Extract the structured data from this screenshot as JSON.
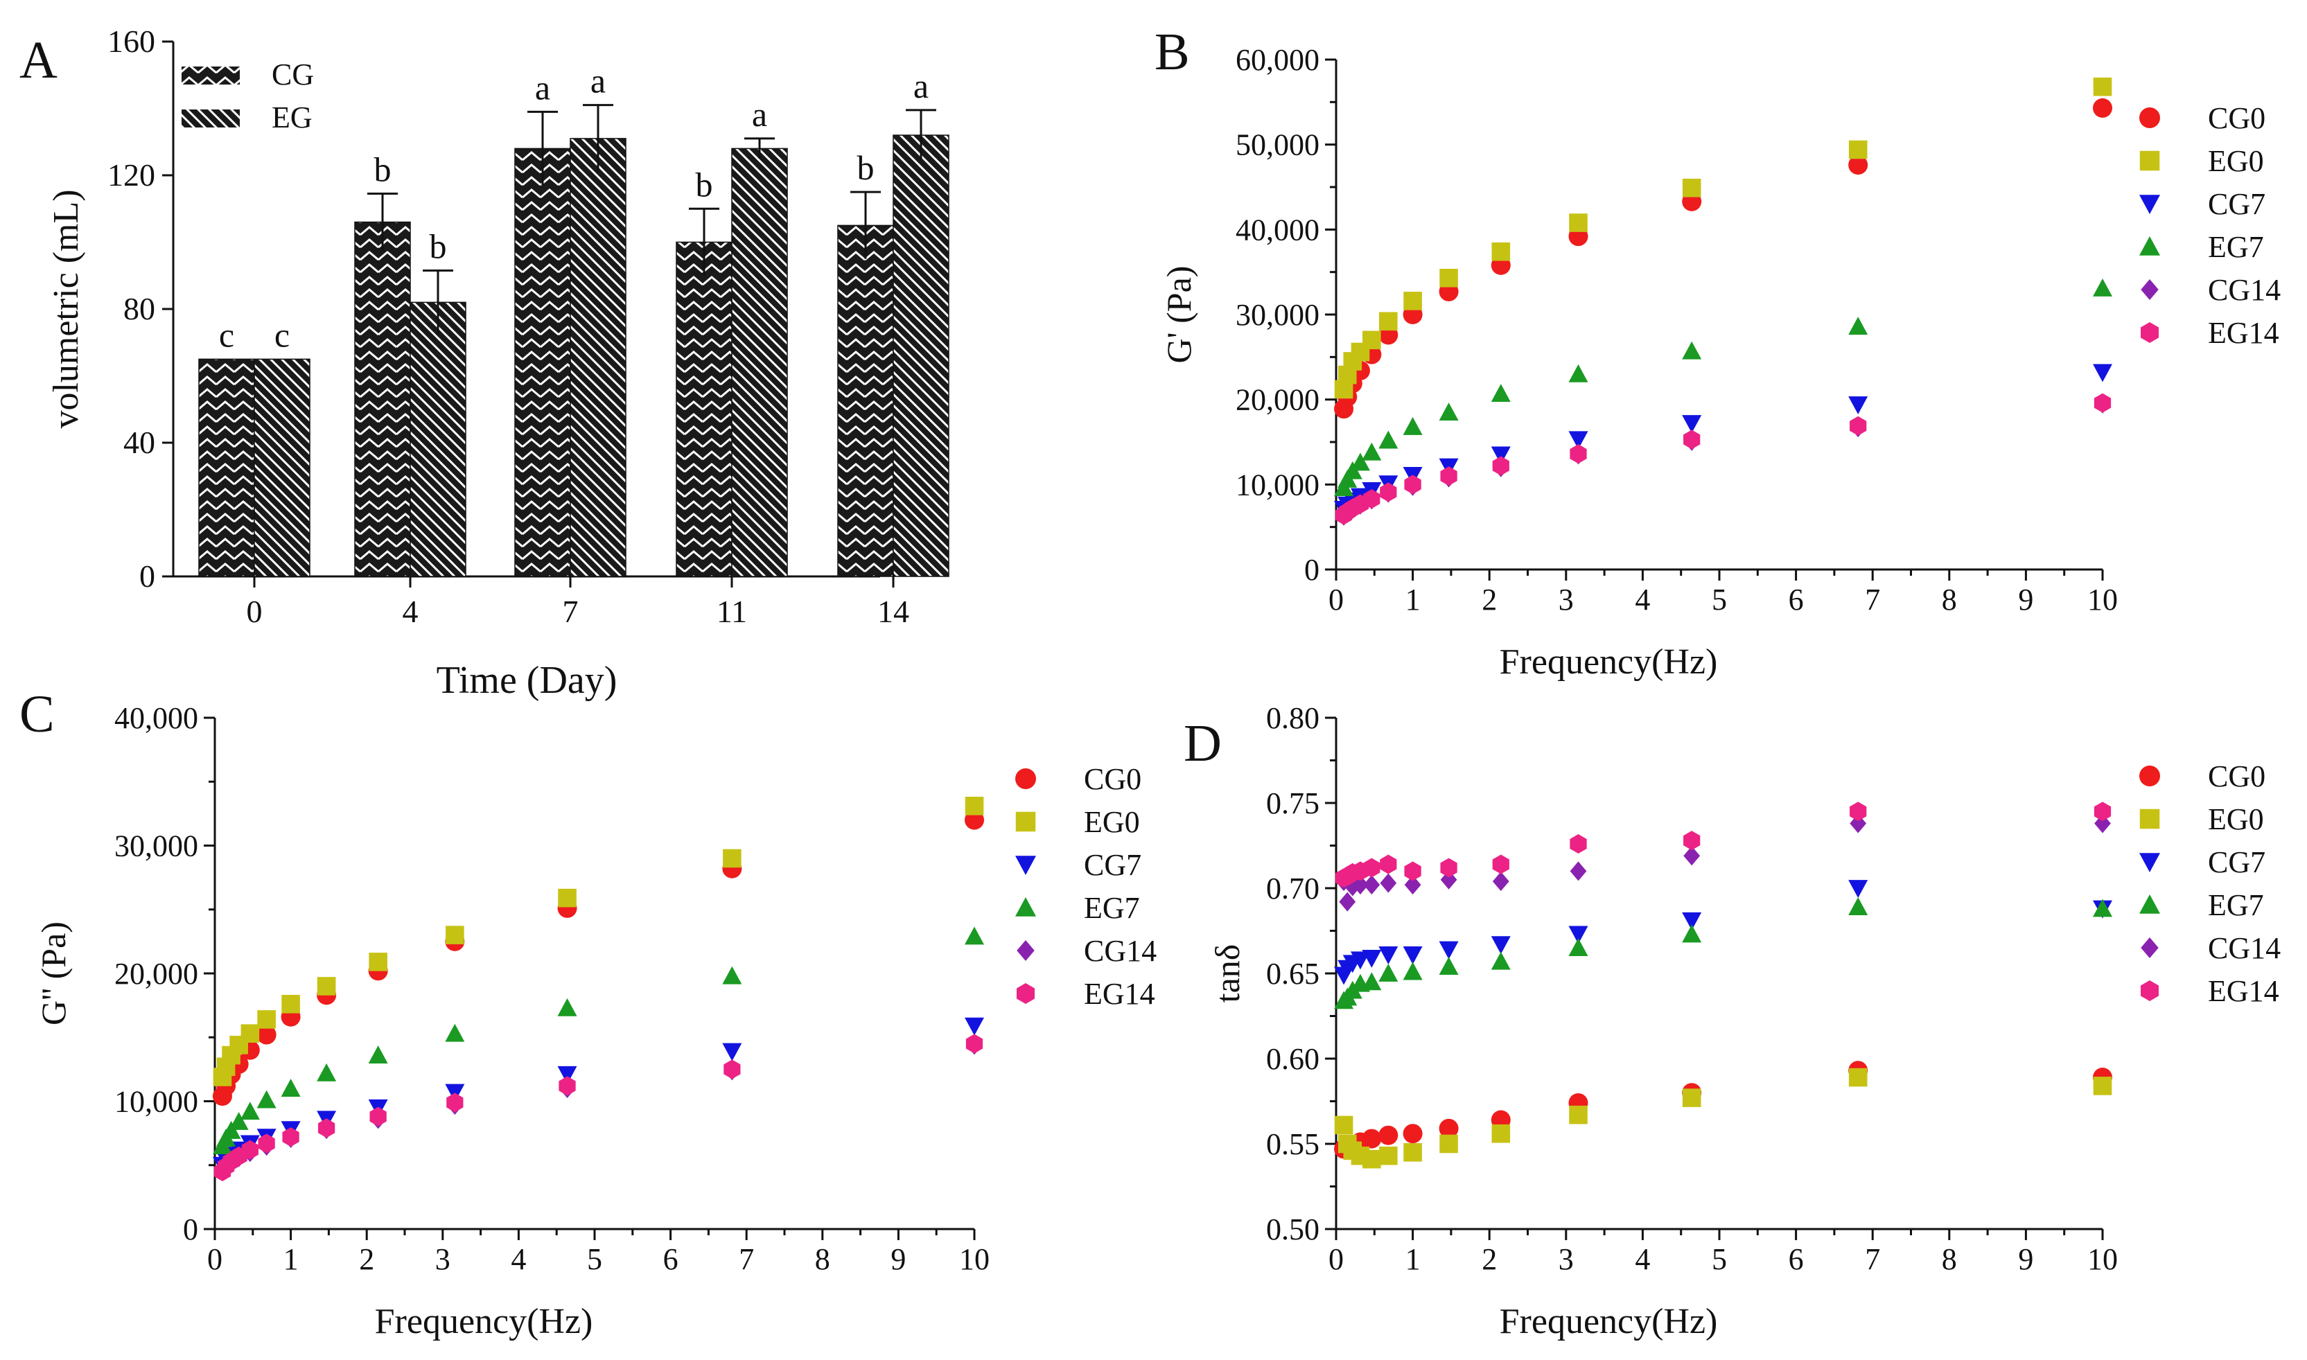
{
  "colors": {
    "CG0": "#ee1c1c",
    "EG0": "#c6c214",
    "CG7": "#1313e0",
    "EG7": "#1a9a22",
    "CG14": "#8a22b0",
    "EG14": "#ec2384",
    "bar_fill": "#1a1a1a",
    "bar_hatch": "#ffffff",
    "axis": "#111111"
  },
  "chart_data": [
    {
      "panel": "A",
      "type": "bar",
      "xlabel": "Time (Day)",
      "ylabel": "volumetric (mL)",
      "categories": [
        "0",
        "4",
        "7",
        "11",
        "14"
      ],
      "ylim": [
        0,
        160
      ],
      "yticks": [
        0,
        40,
        80,
        120,
        160
      ],
      "grid": false,
      "legend_position": "top-left",
      "series": [
        {
          "name": "CG",
          "values": [
            65,
            106,
            128,
            100,
            105
          ],
          "errors": [
            0,
            8.5,
            11,
            10,
            10
          ],
          "letters": [
            "c",
            "b",
            "a",
            "b",
            "b"
          ]
        },
        {
          "name": "EG",
          "values": [
            65,
            82,
            131,
            128,
            132
          ],
          "errors": [
            0,
            9.5,
            10,
            3,
            7.5
          ],
          "letters": [
            "c",
            "b",
            "a",
            "a",
            "a"
          ]
        }
      ]
    },
    {
      "panel": "B",
      "type": "scatter",
      "xlabel": "Frequency(Hz)",
      "ylabel": "G' (Pa)",
      "xlim": [
        0,
        10
      ],
      "ylim": [
        0,
        60000
      ],
      "xticks": [
        "0",
        "1",
        "2",
        "3",
        "4",
        "5",
        "6",
        "7",
        "8",
        "9",
        "10"
      ],
      "yticks": [
        "0",
        "10,000",
        "20,000",
        "30,000",
        "40,000",
        "50,000",
        "60,000"
      ],
      "grid": false,
      "legend_position": "top-right",
      "x": [
        0.1,
        0.147,
        0.215,
        0.316,
        0.464,
        0.681,
        1,
        1.47,
        2.15,
        3.16,
        4.64,
        6.81,
        10
      ],
      "series": [
        {
          "name": "CG0",
          "marker": "circle",
          "values": [
            18900,
            20300,
            21900,
            23400,
            25300,
            27600,
            30000,
            32700,
            35800,
            39200,
            43300,
            47600,
            54300
          ]
        },
        {
          "name": "EG0",
          "marker": "square",
          "values": [
            21200,
            22900,
            24500,
            25600,
            27000,
            29200,
            31600,
            34300,
            37400,
            40800,
            44900,
            49400,
            56800
          ]
        },
        {
          "name": "CG7",
          "marker": "triangle-down",
          "values": [
            7100,
            7600,
            8100,
            8600,
            9300,
            10100,
            11100,
            12100,
            13500,
            15300,
            17200,
            19400,
            23200
          ]
        },
        {
          "name": "EG7",
          "marker": "triangle-up",
          "values": [
            9600,
            10600,
            11600,
            12600,
            13800,
            15200,
            16800,
            18500,
            20700,
            23000,
            25700,
            28600,
            33100
          ]
        },
        {
          "name": "CG14",
          "marker": "diamond",
          "values": [
            6300,
            6700,
            7100,
            7600,
            8200,
            9000,
            9800,
            10800,
            12000,
            13500,
            15100,
            16700,
            19500
          ]
        },
        {
          "name": "EG14",
          "marker": "hexagon",
          "values": [
            6400,
            6800,
            7200,
            7700,
            8300,
            9100,
            10000,
            11000,
            12200,
            13600,
            15300,
            16900,
            19600
          ]
        }
      ]
    },
    {
      "panel": "C",
      "type": "scatter",
      "xlabel": "Frequency(Hz)",
      "ylabel": "G'' (Pa)",
      "xlim": [
        0,
        10
      ],
      "ylim": [
        0,
        40000
      ],
      "xticks": [
        "0",
        "1",
        "2",
        "3",
        "4",
        "5",
        "6",
        "7",
        "8",
        "9",
        "10"
      ],
      "yticks": [
        "0",
        "10,000",
        "20,000",
        "30,000",
        "40,000"
      ],
      "grid": false,
      "legend_position": "top-right",
      "x": [
        0.1,
        0.147,
        0.215,
        0.316,
        0.464,
        0.681,
        1,
        1.47,
        2.15,
        3.16,
        4.64,
        6.81,
        10
      ],
      "series": [
        {
          "name": "CG0",
          "marker": "circle",
          "values": [
            10400,
            11200,
            12100,
            12900,
            14000,
            15200,
            16600,
            18300,
            20200,
            22500,
            25100,
            28200,
            32000
          ]
        },
        {
          "name": "EG0",
          "marker": "square",
          "values": [
            11900,
            12700,
            13600,
            14400,
            15300,
            16400,
            17600,
            19000,
            20900,
            23000,
            25900,
            29000,
            33100
          ]
        },
        {
          "name": "CG7",
          "marker": "triangle-down",
          "values": [
            5000,
            5400,
            5800,
            6200,
            6700,
            7200,
            7800,
            8600,
            9500,
            10700,
            12100,
            13900,
            15900
          ]
        },
        {
          "name": "EG7",
          "marker": "triangle-up",
          "values": [
            6500,
            7100,
            7700,
            8400,
            9200,
            10100,
            11000,
            12200,
            13600,
            15300,
            17300,
            19800,
            22900
          ]
        },
        {
          "name": "CG14",
          "marker": "diamond",
          "values": [
            4500,
            4800,
            5200,
            5600,
            6000,
            6500,
            7100,
            7800,
            8600,
            9700,
            11000,
            12400,
            14400
          ]
        },
        {
          "name": "EG14",
          "marker": "hexagon",
          "values": [
            4500,
            4900,
            5300,
            5700,
            6200,
            6700,
            7200,
            7900,
            8800,
            9900,
            11200,
            12500,
            14500
          ]
        }
      ]
    },
    {
      "panel": "D",
      "type": "scatter",
      "xlabel": "Frequency(Hz)",
      "ylabel": "tanδ",
      "xlim": [
        0,
        10
      ],
      "ylim": [
        0.5,
        0.8
      ],
      "xticks": [
        "0",
        "1",
        "2",
        "3",
        "4",
        "5",
        "6",
        "7",
        "8",
        "9",
        "10"
      ],
      "yticks": [
        "0.50",
        "0.55",
        "0.60",
        "0.65",
        "0.70",
        "0.75",
        "0.80"
      ],
      "grid": false,
      "legend_position": "top-right",
      "x": [
        0.1,
        0.147,
        0.215,
        0.316,
        0.464,
        0.681,
        1,
        1.47,
        2.15,
        3.16,
        4.64,
        6.81,
        10
      ],
      "series": [
        {
          "name": "CG0",
          "marker": "circle",
          "values": [
            0.547,
            0.548,
            0.549,
            0.551,
            0.553,
            0.555,
            0.556,
            0.559,
            0.564,
            0.574,
            0.58,
            0.593,
            0.589
          ]
        },
        {
          "name": "EG0",
          "marker": "square",
          "values": [
            0.561,
            0.55,
            0.546,
            0.543,
            0.541,
            0.543,
            0.545,
            0.55,
            0.556,
            0.567,
            0.577,
            0.589,
            0.584
          ]
        },
        {
          "name": "CG7",
          "marker": "triangle-down",
          "values": [
            0.649,
            0.653,
            0.656,
            0.658,
            0.659,
            0.661,
            0.661,
            0.664,
            0.667,
            0.673,
            0.681,
            0.7,
            0.688
          ]
        },
        {
          "name": "EG7",
          "marker": "triangle-up",
          "values": [
            0.634,
            0.636,
            0.64,
            0.644,
            0.645,
            0.65,
            0.651,
            0.654,
            0.657,
            0.665,
            0.673,
            0.689,
            0.688
          ]
        },
        {
          "name": "CG14",
          "marker": "diamond",
          "values": [
            0.704,
            0.692,
            0.701,
            0.702,
            0.702,
            0.703,
            0.702,
            0.705,
            0.704,
            0.71,
            0.719,
            0.738,
            0.738
          ]
        },
        {
          "name": "EG14",
          "marker": "hexagon",
          "values": [
            0.706,
            0.707,
            0.709,
            0.71,
            0.712,
            0.714,
            0.71,
            0.712,
            0.714,
            0.726,
            0.728,
            0.745,
            0.745
          ]
        }
      ]
    }
  ]
}
